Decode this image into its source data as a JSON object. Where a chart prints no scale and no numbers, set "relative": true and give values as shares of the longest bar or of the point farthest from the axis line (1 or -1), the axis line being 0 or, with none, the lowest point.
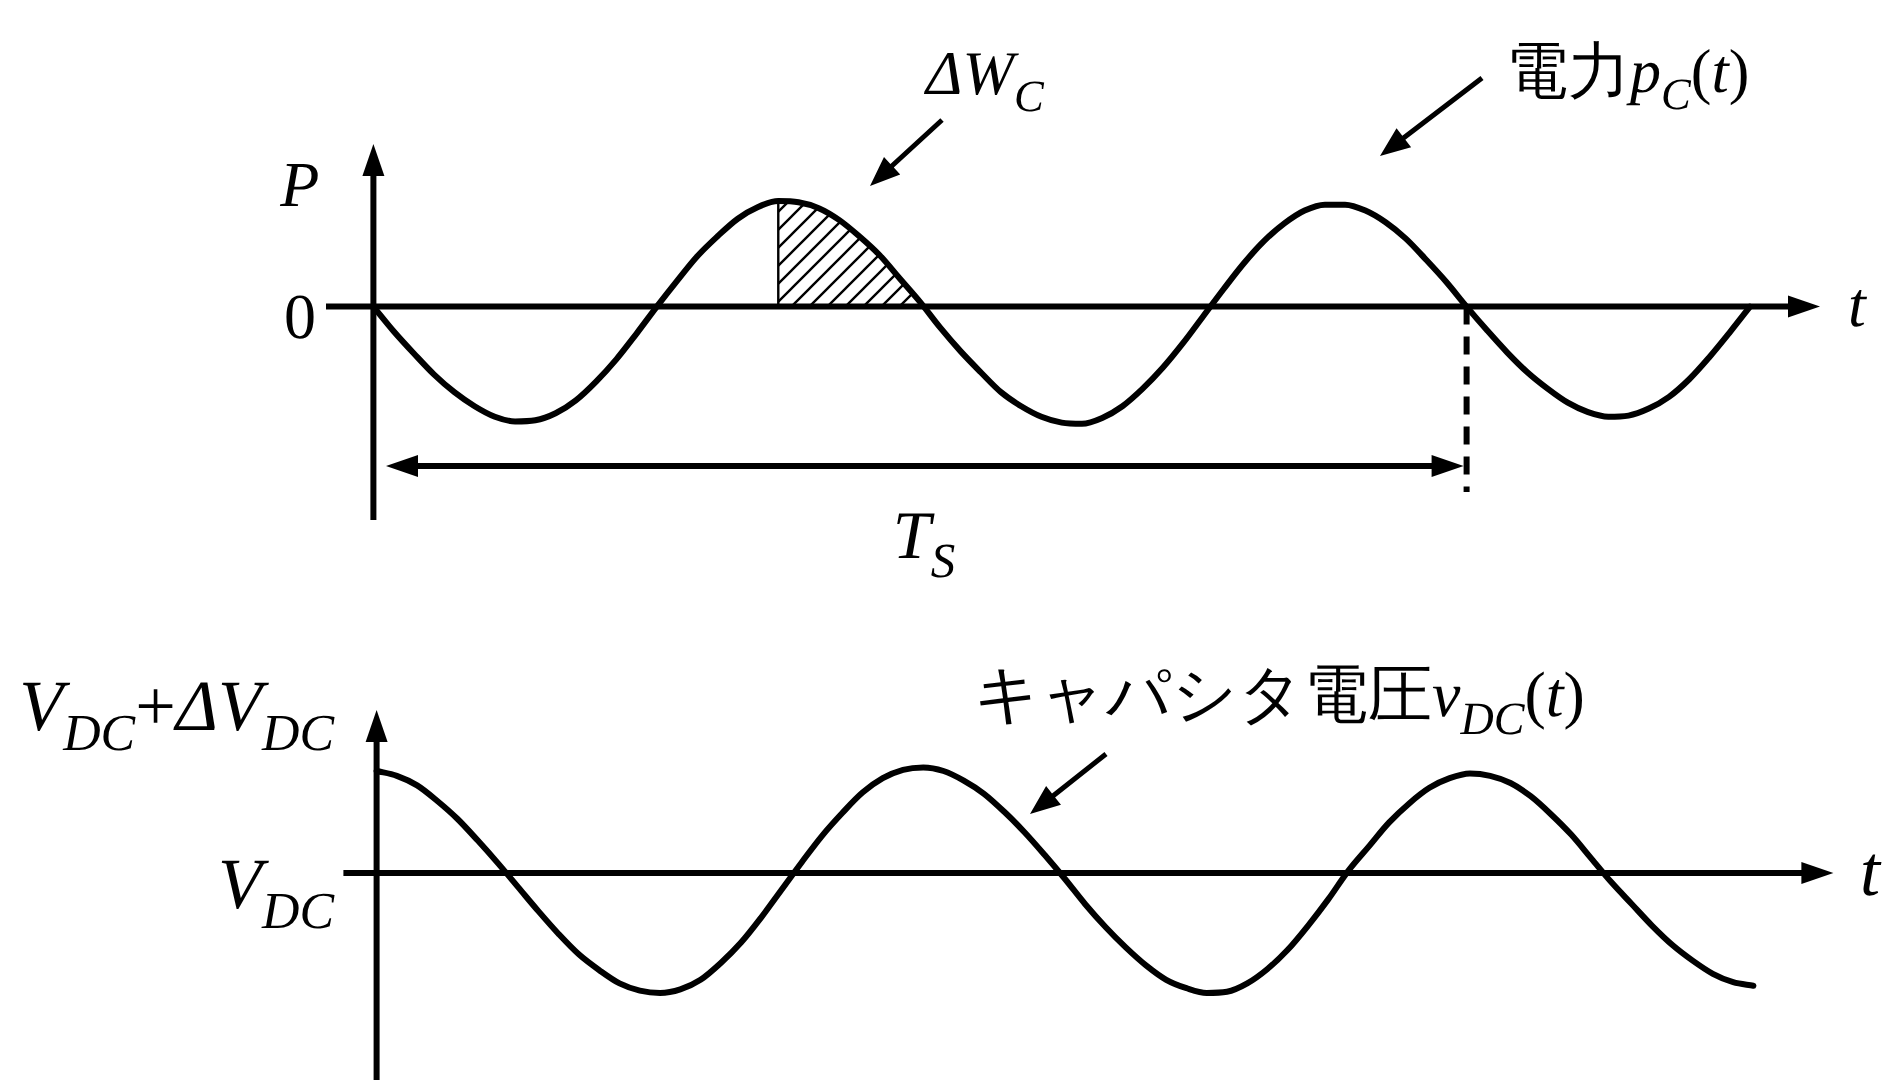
{
  "chart_data": [
    {
      "type": "line",
      "relative": true,
      "xlabel": "t",
      "ylabel": "P",
      "categories": [
        null,
        null,
        null,
        null,
        null,
        null,
        null,
        null,
        null,
        null,
        null,
        null,
        null,
        null,
        null,
        null,
        null,
        null,
        null,
        null,
        null,
        null,
        null,
        null,
        null,
        null,
        null,
        null,
        null,
        null,
        null,
        null,
        null,
        null,
        null,
        null,
        null,
        null,
        null,
        null,
        null,
        null,
        null,
        null,
        null,
        null,
        null,
        null,
        null,
        null,
        null,
        null,
        null,
        null,
        null,
        null,
        null,
        null,
        null,
        null,
        null,
        null,
        null,
        null,
        null,
        null,
        null,
        null,
        null
      ],
      "series": [
        {
          "name": "電力p$_{C}$(t)",
          "color": "#000000",
          "values": [
            0,
            -0.21,
            -0.4,
            -0.58,
            -0.73,
            -0.85,
            -0.94,
            -0.98,
            -0.97,
            -0.91,
            -0.8,
            -0.64,
            -0.45,
            -0.23,
            0,
            0.22,
            0.43,
            0.6,
            0.75,
            0.85,
            0.9,
            0.89,
            0.84,
            0.74,
            0.6,
            0.44,
            0.24,
            0.04,
            -0.18,
            -0.38,
            -0.56,
            -0.73,
            -0.85,
            -0.94,
            -0.99,
            -1,
            -0.95,
            -0.85,
            -0.7,
            -0.52,
            -0.31,
            -0.08,
            0.15,
            0.37,
            0.56,
            0.71,
            0.82,
            0.87,
            0.87,
            0.82,
            0.72,
            0.58,
            0.4,
            0.21,
            0,
            -0.2,
            -0.39,
            -0.56,
            -0.7,
            -0.82,
            -0.9,
            -0.94,
            -0.93,
            -0.87,
            -0.77,
            -0.62,
            -0.43,
            -0.22,
            0
          ]
        },
        {
          "type": "area",
          "name": "ΔW$_{C}$",
          "color": "#000000",
          "values": [
            null,
            null,
            null,
            null,
            null,
            null,
            null,
            null,
            null,
            null,
            null,
            null,
            null,
            null,
            null,
            null,
            null,
            null,
            null,
            null,
            0.9,
            0.89,
            0.84,
            0.74,
            0.6,
            0.44,
            0.24,
            0.04,
            null,
            null,
            null,
            null,
            null,
            null,
            null,
            null,
            null,
            null,
            null,
            null,
            null,
            null,
            null,
            null,
            null,
            null,
            null,
            null,
            null,
            null,
            null,
            null,
            null,
            null,
            null,
            null,
            null,
            null,
            null,
            null,
            null,
            null,
            null,
            null,
            null,
            null,
            null,
            null,
            null
          ]
        }
      ],
      "annotations": [
        "0",
        "T$_{S}$"
      ]
    },
    {
      "type": "line",
      "relative": true,
      "xlabel": "t",
      "categories": [
        null,
        null,
        null,
        null,
        null,
        null,
        null,
        null,
        null,
        null,
        null,
        null,
        null,
        null,
        null,
        null,
        null,
        null,
        null,
        null,
        null,
        null,
        null,
        null,
        null,
        null,
        null,
        null,
        null,
        null,
        null,
        null,
        null,
        null,
        null,
        null,
        null,
        null,
        null,
        null,
        null,
        null,
        null,
        null,
        null,
        null,
        null,
        null,
        null,
        null,
        null,
        null,
        null,
        null,
        null,
        null,
        null,
        null,
        null,
        null,
        null,
        null,
        null,
        null,
        null,
        null,
        null,
        null,
        null
      ],
      "series": [
        {
          "name": "キャパシタ電圧v$_{DC}$(t)",
          "color": "#000000",
          "values": [
            0.85,
            0.81,
            0.73,
            0.6,
            0.45,
            0.27,
            0.08,
            -0.12,
            -0.32,
            -0.51,
            -0.68,
            -0.81,
            -0.92,
            -0.98,
            -1,
            -0.97,
            -0.89,
            -0.75,
            -0.58,
            -0.37,
            -0.14,
            0.09,
            0.31,
            0.5,
            0.67,
            0.79,
            0.86,
            0.88,
            0.85,
            0.77,
            0.66,
            0.51,
            0.34,
            0.15,
            -0.05,
            -0.26,
            -0.45,
            -0.62,
            -0.77,
            -0.89,
            -0.96,
            -1,
            -0.99,
            -0.92,
            -0.8,
            -0.64,
            -0.44,
            -0.22,
            0.02,
            0.22,
            0.42,
            0.58,
            0.71,
            0.79,
            0.83,
            0.81,
            0.75,
            0.64,
            0.49,
            0.32,
            0.12,
            -0.08,
            -0.26,
            -0.44,
            -0.6,
            -0.73,
            -0.84,
            -0.91,
            -0.94
          ]
        }
      ],
      "annotations": [
        "V$_{DC}$+ΔV$_{DC}$",
        "V$_{DC}$"
      ]
    }
  ]
}
